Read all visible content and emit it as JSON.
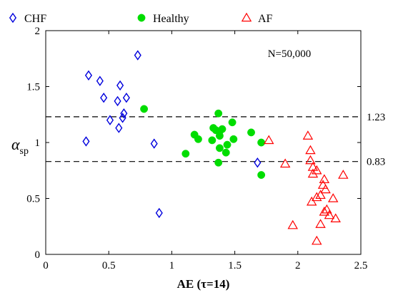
{
  "chart_data": {
    "type": "scatter",
    "xlabel": "AE (τ=14)",
    "ylabel": "α",
    "ylabel_subscript": "sp",
    "xlim": [
      0,
      2.5
    ],
    "ylim": [
      0,
      2
    ],
    "x_ticks": [
      0,
      0.5,
      1,
      1.5,
      2,
      2.5
    ],
    "x_tick_labels": [
      "0",
      "0.5",
      "1",
      "1.5",
      "2",
      "2.5"
    ],
    "y_ticks": [
      0,
      0.5,
      1,
      1.5,
      2
    ],
    "y_tick_labels": [
      "0",
      "0.5",
      "1",
      "1.5",
      "2"
    ],
    "legend_position": "top",
    "annotation": "N=50,000",
    "reference_lines": [
      {
        "y": 1.23,
        "label": "1.23",
        "style": "dashed"
      },
      {
        "y": 0.83,
        "label": "0.83",
        "style": "dashed"
      }
    ],
    "series": [
      {
        "name": "CHF",
        "marker": "diamond",
        "color": "#0000dd",
        "points": [
          [
            0.34,
            1.6
          ],
          [
            0.43,
            1.55
          ],
          [
            0.46,
            1.4
          ],
          [
            0.59,
            1.51
          ],
          [
            0.57,
            1.37
          ],
          [
            0.64,
            1.4
          ],
          [
            0.73,
            1.78
          ],
          [
            0.62,
            1.26
          ],
          [
            0.61,
            1.22
          ],
          [
            0.51,
            1.2
          ],
          [
            0.58,
            1.13
          ],
          [
            0.32,
            1.01
          ],
          [
            0.86,
            0.99
          ],
          [
            0.9,
            0.37
          ],
          [
            1.68,
            0.82
          ]
        ]
      },
      {
        "name": "Healthy",
        "marker": "circle",
        "color": "#00dd00",
        "points": [
          [
            0.78,
            1.3
          ],
          [
            1.37,
            1.26
          ],
          [
            1.33,
            1.13
          ],
          [
            1.4,
            1.12
          ],
          [
            1.48,
            1.18
          ],
          [
            1.38,
            1.1
          ],
          [
            1.35,
            1.11
          ],
          [
            1.18,
            1.07
          ],
          [
            1.38,
            1.06
          ],
          [
            1.21,
            1.03
          ],
          [
            1.32,
            1.02
          ],
          [
            1.49,
            1.03
          ],
          [
            1.63,
            1.09
          ],
          [
            1.44,
            0.98
          ],
          [
            1.71,
            1.0
          ],
          [
            1.38,
            0.95
          ],
          [
            1.43,
            0.91
          ],
          [
            1.11,
            0.9
          ],
          [
            1.37,
            0.82
          ],
          [
            1.71,
            0.71
          ]
        ]
      },
      {
        "name": "AF",
        "marker": "triangle",
        "color": "#ff0000",
        "points": [
          [
            1.77,
            1.02
          ],
          [
            1.9,
            0.81
          ],
          [
            2.08,
            1.06
          ],
          [
            2.1,
            0.93
          ],
          [
            2.1,
            0.84
          ],
          [
            2.12,
            0.72
          ],
          [
            2.15,
            0.75
          ],
          [
            2.12,
            0.78
          ],
          [
            2.21,
            0.67
          ],
          [
            2.2,
            0.62
          ],
          [
            2.36,
            0.71
          ],
          [
            2.22,
            0.58
          ],
          [
            2.18,
            0.53
          ],
          [
            2.15,
            0.51
          ],
          [
            2.28,
            0.5
          ],
          [
            2.11,
            0.47
          ],
          [
            2.23,
            0.4
          ],
          [
            2.21,
            0.38
          ],
          [
            2.25,
            0.35
          ],
          [
            2.3,
            0.32
          ],
          [
            2.18,
            0.27
          ],
          [
            1.96,
            0.26
          ],
          [
            2.15,
            0.12
          ]
        ]
      }
    ]
  }
}
